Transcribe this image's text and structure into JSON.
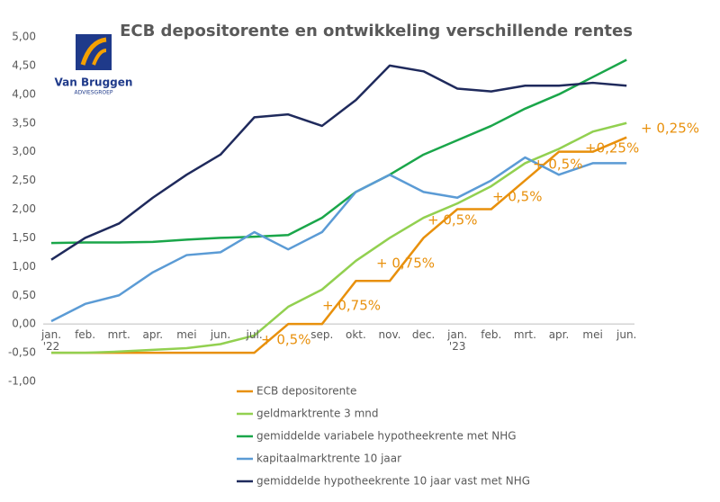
{
  "chart_data": {
    "type": "line",
    "title": "ECB depositorente en ontwikkeling verschillende rentes",
    "logo": {
      "name": "Van Bruggen",
      "subtitle": "ADVIESGROEP"
    },
    "categories": [
      "jan. '22",
      "feb.",
      "mrt.",
      "apr.",
      "mei",
      "jun.",
      "jul.",
      null,
      "sep.",
      "okt.",
      "nov.",
      "dec.",
      "jan. '23",
      "feb.",
      "mrt.",
      "apr.",
      "mei",
      "jun."
    ],
    "ylim": [
      -1,
      5
    ],
    "yticks": [
      {
        "value": 5,
        "label": "5,00"
      },
      {
        "value": 4.5,
        "label": "4,50"
      },
      {
        "value": 4,
        "label": "4,00"
      },
      {
        "value": 3.5,
        "label": "3,50"
      },
      {
        "value": 3,
        "label": "3,00"
      },
      {
        "value": 2.5,
        "label": "2,50"
      },
      {
        "value": 2,
        "label": "2,00"
      },
      {
        "value": 1.5,
        "label": "1,50"
      },
      {
        "value": 1,
        "label": "1,00"
      },
      {
        "value": 0.5,
        "label": "0,50"
      },
      {
        "value": 0,
        "label": "0,00"
      },
      {
        "value": -0.5,
        "label": "-0,50"
      },
      {
        "value": -1,
        "label": "-1,00"
      }
    ],
    "grid": false,
    "legend": "bottom",
    "series": [
      {
        "name": "ECB depositorente",
        "color": "#e8900c",
        "values": [
          -0.5,
          -0.5,
          -0.5,
          -0.5,
          -0.5,
          -0.5,
          -0.5,
          0,
          0,
          0.75,
          0.75,
          1.5,
          2,
          2,
          2.5,
          3,
          3,
          3.25
        ]
      },
      {
        "name": "geldmarktrente 3 mnd",
        "color": "#92d050",
        "values": [
          -0.5,
          -0.5,
          -0.48,
          -0.45,
          -0.42,
          -0.35,
          -0.2,
          0.3,
          0.6,
          1.1,
          1.5,
          1.85,
          2.1,
          2.4,
          2.8,
          3.05,
          3.35,
          3.5
        ]
      },
      {
        "name": "gemiddelde variabele hypotheekrente met NHG",
        "color": "#1aa64a",
        "values": [
          1.41,
          1.42,
          1.42,
          1.43,
          1.47,
          1.5,
          1.52,
          1.55,
          1.85,
          2.3,
          2.6,
          2.95,
          3.2,
          3.45,
          3.75,
          4,
          4.3,
          4.6
        ]
      },
      {
        "name": "kapitaalmarktrente 10 jaar",
        "color": "#5b9bd5",
        "values": [
          0.05,
          0.35,
          0.5,
          0.9,
          1.2,
          1.25,
          1.6,
          1.3,
          1.6,
          2.3,
          2.6,
          2.3,
          2.2,
          2.5,
          2.9,
          2.6,
          2.8,
          2.8
        ]
      },
      {
        "name": "gemiddelde hypotheekrente 10 jaar vast met NHG",
        "color": "#1f2a5c",
        "values": [
          1.12,
          1.5,
          1.75,
          2.2,
          2.6,
          2.95,
          3.6,
          3.65,
          3.45,
          3.9,
          4.5,
          4.4,
          4.1,
          4.05,
          4.15,
          4.15,
          4.2,
          4.15
        ]
      }
    ],
    "annotations": [
      "+ 0,25%",
      "+0,25%",
      "+ 0,5%",
      "+ 0,5%",
      "+ 0,5%",
      "+ 0,75%",
      "+ 0,75%",
      "+ 0,5%"
    ]
  }
}
